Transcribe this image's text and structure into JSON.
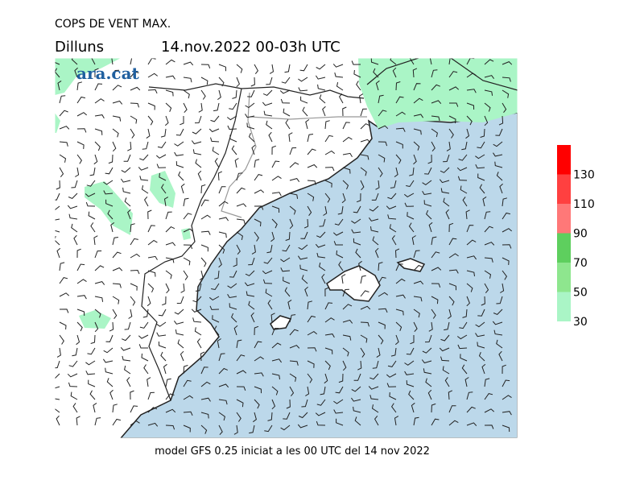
{
  "header": {
    "title": "COPS DE VENT MAX.",
    "day": "Dilluns",
    "date": "14.nov.2022 00-03h UTC"
  },
  "logo": "ara.cat",
  "legend": {
    "labels": [
      30,
      50,
      70,
      90,
      110,
      130
    ],
    "colors": [
      "#aaf5c6",
      "#8ee68e",
      "#5ecf5e",
      "#ff7878",
      "#ff4040",
      "#ff0000"
    ]
  },
  "footer": "model GFS 0.25 iniciat a les 00 UTC del 14 nov 2022"
}
